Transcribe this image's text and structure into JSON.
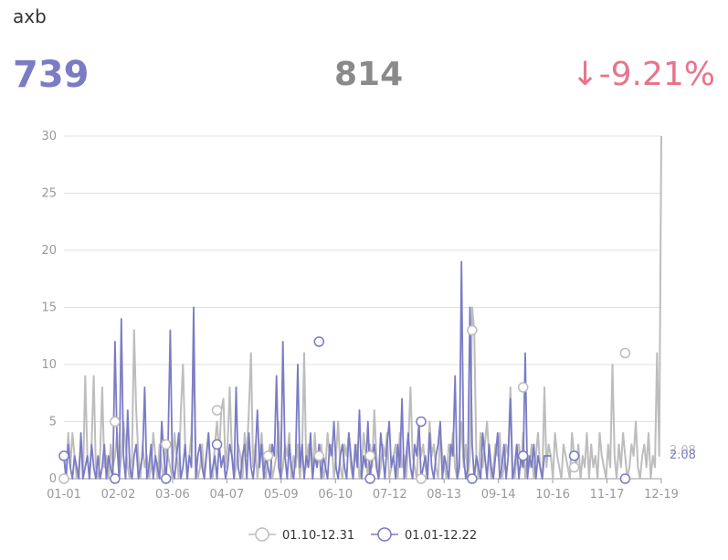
{
  "header": {
    "title": "axb",
    "current_value": "739",
    "previous_value": "814",
    "change": "↓-9.21%"
  },
  "colors": {
    "current": "#7b7bc6",
    "previous": "#bdbdbd",
    "change_negative": "#e8748c"
  },
  "chart_data": {
    "type": "line",
    "title": "",
    "xlabel": "",
    "ylabel": "",
    "ylim": [
      0,
      30
    ],
    "yticks": [
      "0",
      "5",
      "10",
      "15",
      "20",
      "25",
      "30"
    ],
    "x_tick_labels": [
      "01-01",
      "02-02",
      "03-06",
      "04-07",
      "05-09",
      "06-10",
      "07-12",
      "08-13",
      "09-14",
      "10-16",
      "11-17",
      "12-19"
    ],
    "grid": true,
    "legend_position": "bottom",
    "average_labels": [
      "2.08",
      "2.08"
    ],
    "series": [
      {
        "name": "01.10-12.31",
        "color": "#bdbdbd",
        "values": [
          2,
          0,
          4,
          1,
          4,
          2,
          0,
          1,
          3,
          0,
          9,
          2,
          0,
          3,
          9,
          1,
          0,
          2,
          8,
          1,
          2,
          0,
          3,
          1,
          2,
          4,
          0,
          2,
          5,
          3,
          1,
          0,
          2,
          13,
          6,
          2,
          0,
          3,
          1,
          2,
          0,
          1,
          4,
          2,
          0,
          3,
          1,
          0,
          3,
          2,
          1,
          0,
          4,
          2,
          0,
          6,
          10,
          3,
          0,
          2,
          4,
          11,
          2,
          0,
          1,
          3,
          0,
          2,
          4,
          1,
          0,
          3,
          5,
          2,
          6,
          7,
          1,
          3,
          8,
          2,
          0,
          1,
          3,
          2,
          0,
          4,
          2,
          6,
          11,
          1,
          3,
          0,
          2,
          4,
          1,
          0,
          2,
          3,
          0,
          1,
          2,
          5,
          0,
          1,
          3,
          2,
          4,
          0,
          2,
          1,
          3,
          0,
          2,
          11,
          1,
          3,
          2,
          0,
          4,
          1,
          2,
          3,
          0,
          1,
          4,
          2,
          3,
          0,
          2,
          5,
          1,
          0,
          3,
          2,
          4,
          1,
          0,
          2,
          3,
          0,
          1,
          4,
          2,
          0,
          3,
          1,
          6,
          2,
          0,
          1,
          3,
          2,
          4,
          0,
          1,
          2,
          3,
          0,
          4,
          1,
          2,
          0,
          3,
          8,
          2,
          1,
          0,
          4,
          2,
          3,
          1,
          0,
          5,
          2,
          3,
          1,
          0,
          4,
          2,
          1,
          0,
          3,
          2,
          4,
          1,
          0,
          2,
          5,
          1,
          3,
          0,
          2,
          15,
          13,
          2,
          0,
          4,
          1,
          3,
          5,
          2,
          0,
          1,
          3,
          2,
          4,
          0,
          1,
          3,
          2,
          8,
          1,
          0,
          2,
          3,
          1,
          4,
          0,
          2,
          1,
          3,
          0,
          2,
          4,
          1,
          0,
          8,
          1,
          3,
          2,
          0,
          4,
          2,
          1,
          0,
          3,
          2,
          1,
          0,
          4,
          2,
          1,
          3,
          0,
          2,
          1,
          4,
          0,
          3,
          1,
          2,
          0,
          4,
          2,
          1,
          0,
          3,
          1,
          10,
          2,
          0,
          3,
          1,
          4,
          2,
          0,
          1,
          3,
          2,
          5,
          1,
          0,
          2,
          3,
          1,
          4,
          0,
          2,
          1,
          11,
          2,
          30
        ]
      },
      {
        "name": "01.01-12.22",
        "color": "#7b7bc6",
        "values": [
          2,
          0,
          3,
          1,
          0,
          2,
          1,
          0,
          4,
          0,
          1,
          2,
          0,
          3,
          1,
          0,
          2,
          0,
          1,
          3,
          0,
          2,
          1,
          0,
          12,
          3,
          0,
          14,
          2,
          0,
          6,
          1,
          0,
          2,
          3,
          0,
          1,
          2,
          8,
          0,
          1,
          3,
          0,
          2,
          1,
          0,
          5,
          2,
          0,
          3,
          13,
          1,
          0,
          2,
          4,
          0,
          1,
          3,
          0,
          2,
          1,
          15,
          0,
          2,
          3,
          1,
          0,
          2,
          4,
          0,
          1,
          2,
          0,
          3,
          1,
          2,
          0,
          1,
          3,
          2,
          0,
          8,
          1,
          0,
          2,
          3,
          0,
          4,
          1,
          0,
          2,
          6,
          1,
          3,
          0,
          2,
          1,
          0,
          3,
          2,
          9,
          1,
          0,
          12,
          2,
          0,
          3,
          1,
          0,
          2,
          10,
          1,
          3,
          0,
          2,
          1,
          4,
          0,
          2,
          1,
          3,
          0,
          2,
          1,
          0,
          3,
          2,
          5,
          1,
          0,
          2,
          3,
          1,
          0,
          4,
          2,
          0,
          3,
          1,
          6,
          0,
          2,
          1,
          5,
          0,
          2,
          3,
          1,
          0,
          4,
          2,
          0,
          3,
          5,
          1,
          2,
          0,
          3,
          1,
          7,
          0,
          2,
          4,
          1,
          0,
          3,
          2,
          5,
          0,
          1,
          2,
          0,
          4,
          1,
          0,
          2,
          3,
          5,
          0,
          2,
          1,
          0,
          3,
          2,
          9,
          0,
          1,
          19,
          2,
          0,
          1,
          15,
          3,
          0,
          2,
          1,
          0,
          4,
          2,
          0,
          3,
          1,
          0,
          2,
          4,
          0,
          1,
          3,
          0,
          2,
          7,
          0,
          1,
          3,
          0,
          2,
          1,
          11,
          0,
          2,
          1,
          3,
          0,
          2,
          1,
          0,
          2,
          2,
          2,
          2
        ]
      }
    ],
    "current_total_marker": "",
    "markers": {
      "01.10-12.31": [
        [
          0,
          0
        ],
        [
          24,
          5
        ],
        [
          48,
          3
        ],
        [
          72,
          6
        ],
        [
          96,
          2
        ],
        [
          120,
          2
        ],
        [
          144,
          2
        ],
        [
          168,
          0
        ],
        [
          192,
          13
        ],
        [
          216,
          8
        ],
        [
          240,
          1
        ],
        [
          264,
          11
        ]
      ],
      "01.01-12.22": [
        [
          0,
          2
        ],
        [
          24,
          0
        ],
        [
          48,
          0
        ],
        [
          72,
          3
        ],
        [
          120,
          12
        ],
        [
          144,
          0
        ],
        [
          168,
          5
        ],
        [
          192,
          0
        ],
        [
          216,
          2
        ],
        [
          240,
          2
        ],
        [
          264,
          0
        ]
      ]
    }
  }
}
